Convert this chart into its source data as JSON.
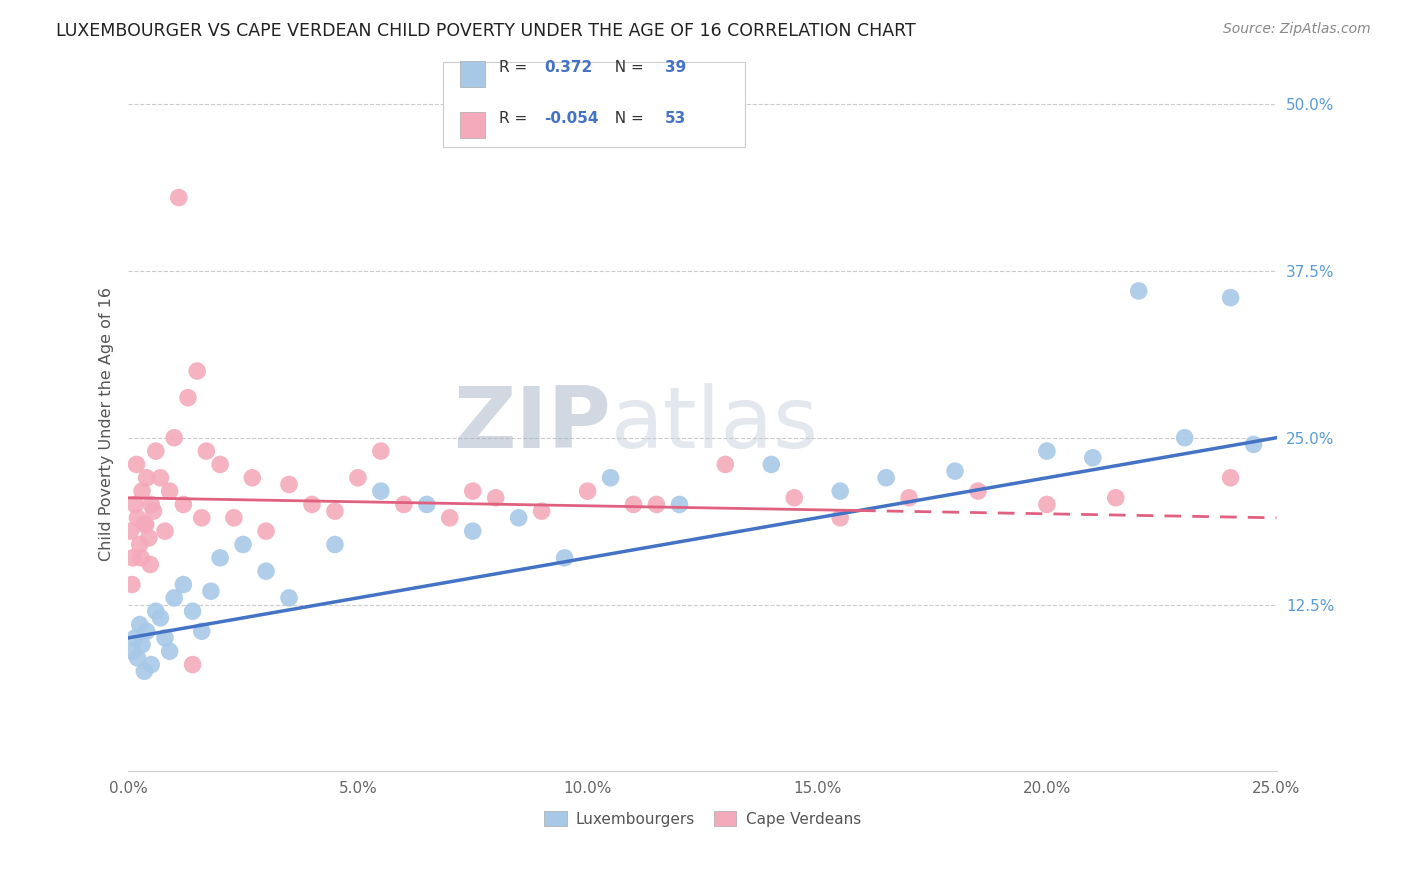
{
  "title": "LUXEMBOURGER VS CAPE VERDEAN CHILD POVERTY UNDER THE AGE OF 16 CORRELATION CHART",
  "source": "Source: ZipAtlas.com",
  "ylabel": "Child Poverty Under the Age of 16",
  "x_tick_labels": [
    "0.0%",
    "5.0%",
    "10.0%",
    "15.0%",
    "20.0%",
    "25.0%"
  ],
  "x_tick_values": [
    0.0,
    5.0,
    10.0,
    15.0,
    20.0,
    25.0
  ],
  "y_tick_labels_right": [
    "12.5%",
    "25.0%",
    "37.5%",
    "50.0%"
  ],
  "y_tick_values": [
    12.5,
    25.0,
    37.5,
    50.0
  ],
  "xlim": [
    0.0,
    25.0
  ],
  "ylim": [
    0.0,
    52.0
  ],
  "blue_color": "#A8C8E8",
  "pink_color": "#F4AABB",
  "blue_line_color": "#4472C4",
  "pink_line_color": "#E06080",
  "blue_R": 0.372,
  "blue_N": 39,
  "pink_R": -0.054,
  "pink_N": 53,
  "legend_label_blue": "Luxembourgers",
  "legend_label_pink": "Cape Verdeans",
  "blue_points_x": [
    0.1,
    0.15,
    0.2,
    0.25,
    0.3,
    0.35,
    0.4,
    0.5,
    0.6,
    0.7,
    0.8,
    0.9,
    1.0,
    1.2,
    1.4,
    1.6,
    1.8,
    2.0,
    2.5,
    3.0,
    3.5,
    4.5,
    5.5,
    6.5,
    7.5,
    8.5,
    9.5,
    10.5,
    12.0,
    14.0,
    15.5,
    16.5,
    18.0,
    20.0,
    21.0,
    22.0,
    23.0,
    24.0,
    24.5
  ],
  "blue_points_y": [
    9.0,
    10.0,
    8.5,
    11.0,
    9.5,
    7.5,
    10.5,
    8.0,
    12.0,
    11.5,
    10.0,
    9.0,
    13.0,
    14.0,
    12.0,
    10.5,
    13.5,
    16.0,
    17.0,
    15.0,
    13.0,
    17.0,
    21.0,
    20.0,
    18.0,
    19.0,
    16.0,
    22.0,
    20.0,
    23.0,
    21.0,
    22.0,
    22.5,
    24.0,
    23.5,
    36.0,
    25.0,
    35.5,
    24.5
  ],
  "pink_points_x": [
    0.05,
    0.1,
    0.15,
    0.2,
    0.25,
    0.3,
    0.35,
    0.4,
    0.45,
    0.5,
    0.55,
    0.6,
    0.7,
    0.8,
    0.9,
    1.0,
    1.1,
    1.2,
    1.3,
    1.5,
    1.7,
    2.0,
    2.3,
    2.7,
    3.0,
    3.5,
    4.0,
    4.5,
    5.0,
    5.5,
    6.0,
    7.0,
    7.5,
    8.0,
    9.0,
    10.0,
    11.0,
    13.0,
    14.5,
    15.5,
    17.0,
    18.5,
    20.0,
    21.5,
    24.0,
    0.08,
    0.18,
    0.28,
    0.38,
    0.48,
    1.4,
    1.6,
    11.5
  ],
  "pink_points_y": [
    18.0,
    16.0,
    20.0,
    19.0,
    17.0,
    21.0,
    18.5,
    22.0,
    17.5,
    20.0,
    19.5,
    24.0,
    22.0,
    18.0,
    21.0,
    25.0,
    43.0,
    20.0,
    28.0,
    30.0,
    24.0,
    23.0,
    19.0,
    22.0,
    18.0,
    21.5,
    20.0,
    19.5,
    22.0,
    24.0,
    20.0,
    19.0,
    21.0,
    20.5,
    19.5,
    21.0,
    20.0,
    23.0,
    20.5,
    19.0,
    20.5,
    21.0,
    20.0,
    20.5,
    22.0,
    14.0,
    23.0,
    16.0,
    18.5,
    15.5,
    8.0,
    19.0,
    20.0
  ]
}
